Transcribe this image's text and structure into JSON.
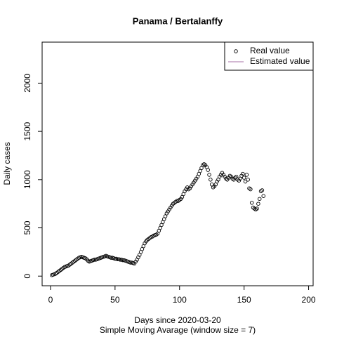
{
  "chart_data": {
    "type": "scatter",
    "title": "Panama / Bertalanffy",
    "x_label": "Days since 2020-03-20",
    "subtitle": "Simple Moving Avarage (window size = 7)",
    "y_label": "Daily cases",
    "xlim": [
      -6.5,
      203.5
    ],
    "ylim": [
      -100,
      2425
    ],
    "xticks": [
      0,
      50,
      100,
      150,
      200
    ],
    "yticks": [
      0,
      500,
      1000,
      1500,
      2000
    ],
    "legend_position": "topright",
    "series": [
      {
        "name": "Real value",
        "color": "#000000",
        "style": "point",
        "x": [
          1,
          2,
          3,
          4,
          5,
          6,
          7,
          8,
          9,
          10,
          11,
          12,
          13,
          14,
          15,
          16,
          17,
          18,
          19,
          20,
          21,
          22,
          23,
          24,
          25,
          26,
          27,
          28,
          29,
          30,
          31,
          32,
          33,
          34,
          35,
          36,
          37,
          38,
          39,
          40,
          41,
          42,
          43,
          44,
          45,
          46,
          47,
          48,
          49,
          50,
          51,
          52,
          53,
          54,
          55,
          56,
          57,
          58,
          59,
          60,
          61,
          62,
          63,
          64,
          65,
          66,
          67,
          68,
          69,
          70,
          71,
          72,
          73,
          74,
          75,
          76,
          77,
          78,
          79,
          80,
          81,
          82,
          83,
          84,
          85,
          86,
          87,
          88,
          89,
          90,
          91,
          92,
          93,
          94,
          95,
          96,
          97,
          98,
          99,
          100,
          101,
          102,
          103,
          104,
          105,
          106,
          107,
          108,
          109,
          110,
          111,
          112,
          113,
          114,
          115,
          116,
          117,
          118,
          119,
          120,
          121,
          122,
          123,
          124,
          125,
          126,
          127,
          128,
          129,
          130,
          131,
          132,
          133,
          134,
          135,
          136,
          137,
          138,
          139,
          140,
          141,
          142,
          143,
          144,
          145,
          146,
          147,
          148,
          149,
          150,
          151,
          152,
          153,
          154,
          155,
          156,
          157,
          158,
          159,
          160,
          161,
          162,
          163,
          164,
          165
        ],
        "values": [
          10,
          15,
          20,
          25,
          35,
          45,
          55,
          65,
          75,
          85,
          95,
          100,
          105,
          110,
          120,
          130,
          140,
          150,
          160,
          170,
          180,
          190,
          195,
          200,
          195,
          190,
          185,
          175,
          160,
          150,
          155,
          160,
          165,
          170,
          170,
          175,
          180,
          185,
          190,
          195,
          200,
          205,
          210,
          205,
          200,
          195,
          190,
          190,
          185,
          180,
          180,
          175,
          175,
          170,
          170,
          165,
          165,
          160,
          155,
          150,
          145,
          140,
          140,
          135,
          130,
          150,
          170,
          195,
          220,
          250,
          280,
          310,
          340,
          360,
          375,
          385,
          395,
          405,
          410,
          420,
          425,
          430,
          440,
          470,
          500,
          530,
          560,
          590,
          620,
          650,
          670,
          690,
          710,
          730,
          750,
          760,
          770,
          780,
          780,
          790,
          800,
          820,
          850,
          880,
          900,
          920,
          900,
          910,
          930,
          950,
          970,
          990,
          1010,
          1030,
          1060,
          1090,
          1120,
          1150,
          1160,
          1150,
          1130,
          1100,
          1050,
          1000,
          950,
          920,
          930,
          950,
          980,
          1000,
          1030,
          1050,
          1070,
          1050,
          1030,
          1010,
          1000,
          1020,
          1040,
          1030,
          1010,
          1000,
          1020,
          1030,
          1000,
          990,
          1010,
          1040,
          1060,
          1020,
          980,
          1050,
          1000,
          910,
          900,
          760,
          710,
          700,
          690,
          700,
          750,
          800,
          880,
          890,
          830
        ]
      },
      {
        "name": "Estimated value",
        "color": "#a770a7",
        "style": "line"
      }
    ]
  }
}
